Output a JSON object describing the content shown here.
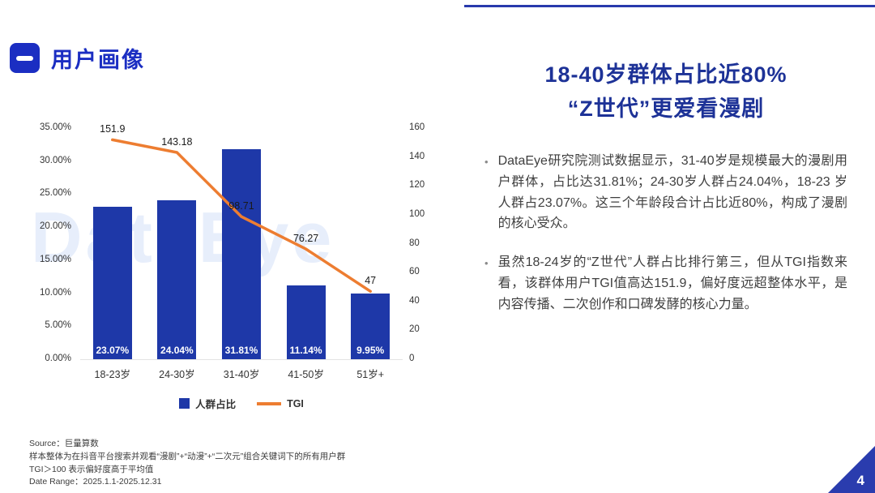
{
  "slide": {
    "page_number": "4"
  },
  "header": {
    "title": "用户画像"
  },
  "right_panel": {
    "title_line1": "18-40岁群体占比近80%",
    "title_line2": "“Z世代”更爱看漫剧",
    "bullets": [
      "DataEye研究院测试数据显示，31-40岁是规模最大的漫剧用户群体，占比达31.81%；24-30岁人群占24.04%，18-23 岁人群占23.07%。这三个年龄段合计占比近80%，构成了漫剧的核心受众。",
      "虽然18-24岁的“Z世代”人群占比排行第三，但从TGI指数来看，该群体用户TGI值高达151.9，偏好度远超整体水平，是内容传播、二次创作和口碑发酵的核心力量。"
    ]
  },
  "chart_data": {
    "type": "combo",
    "categories": [
      "18-23岁",
      "24-30岁",
      "31-40岁",
      "41-50岁",
      "51岁+"
    ],
    "series": [
      {
        "name": "人群占比",
        "type": "bar",
        "axis": "left",
        "color": "#1e38a8",
        "values": [
          23.07,
          24.04,
          31.81,
          11.14,
          9.95
        ],
        "labels": [
          "23.07%",
          "24.04%",
          "31.81%",
          "11.14%",
          "9.95%"
        ]
      },
      {
        "name": "TGI",
        "type": "line",
        "axis": "right",
        "color": "#ED7D31",
        "values": [
          151.9,
          143.18,
          98.71,
          76.27,
          47
        ],
        "labels": [
          "151.9",
          "143.18",
          "98.71",
          "76.27",
          "47"
        ]
      }
    ],
    "left_axis": {
      "min": 0,
      "max": 35,
      "step": 5,
      "format": "percent",
      "ticks": [
        "35.00%",
        "30.00%",
        "25.00%",
        "20.00%",
        "15.00%",
        "10.00%",
        "5.00%",
        "0.00%"
      ]
    },
    "right_axis": {
      "min": 0,
      "max": 160,
      "step": 20,
      "ticks": [
        "160",
        "140",
        "120",
        "100",
        "80",
        "60",
        "40",
        "20",
        "0"
      ]
    },
    "legend": [
      {
        "label": "人群占比",
        "type": "bar",
        "color": "#1e38a8"
      },
      {
        "label": "TGI",
        "type": "line",
        "color": "#ED7D31"
      }
    ],
    "legend_position": "bottom",
    "grid": false,
    "watermark": "DataEye"
  },
  "footer": {
    "lines": [
      "Source：巨量算数",
      "样本整体为在抖音平台搜索并观看“漫剧”+“动漫”+“二次元”组合关键词下的所有用户群",
      "TGI＞100 表示偏好度高于平均值",
      "Date Range：2025.1.1-2025.12.31"
    ]
  },
  "colors": {
    "bar_blue": "#1e38a8",
    "line_orange": "#ED7D31",
    "title_blue": "#1b2ec2",
    "heading_navy": "#1d3297",
    "corner_blue": "#2a3cae"
  }
}
